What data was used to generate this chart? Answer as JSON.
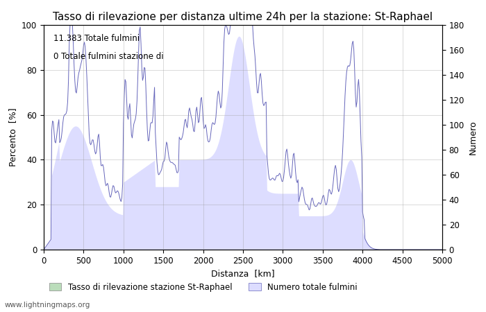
{
  "title": "Tasso di rilevazione per distanza ultime 24h per la stazione: St-Raphael",
  "xlabel": "Distanza  [km]",
  "ylabel_left": "Percento  [%]",
  "ylabel_right": "Numero",
  "annotation_line1": "11.383 Totale fulmini",
  "annotation_line2": "0 Totale fulmini stazione di",
  "watermark": "www.lightningmaps.org",
  "legend_green": "Tasso di rilevazione stazione St-Raphael",
  "legend_blue": "Numero totale fulmini",
  "xlim": [
    0,
    5000
  ],
  "ylim_left": [
    0,
    100
  ],
  "ylim_right": [
    0,
    180
  ],
  "xticks": [
    0,
    500,
    1000,
    1500,
    2000,
    2500,
    3000,
    3500,
    4000,
    4500,
    5000
  ],
  "yticks_left": [
    0,
    20,
    40,
    60,
    80,
    100
  ],
  "yticks_right": [
    0,
    20,
    40,
    60,
    80,
    100,
    120,
    140,
    160,
    180
  ],
  "line_color": "#6666bb",
  "fill_color": "#ddddff",
  "green_color": "#bbddbb",
  "bg_color": "#ffffff",
  "grid_color": "#999999",
  "title_fontsize": 11,
  "label_fontsize": 9,
  "tick_fontsize": 8.5
}
